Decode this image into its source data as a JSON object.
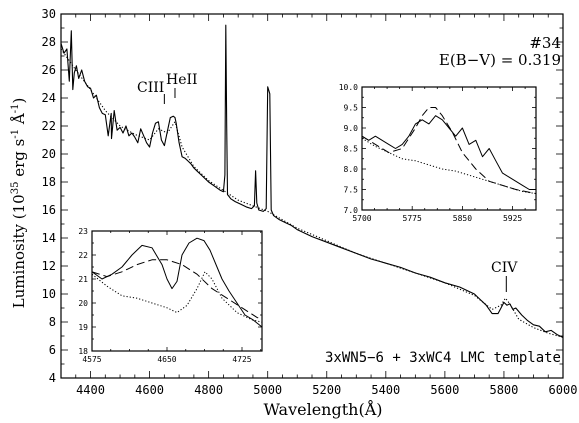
{
  "chart_data": [
    {
      "type": "line",
      "xlabel": "Wavelength(Å)",
      "ylabel_parts": {
        "pre": "Luminosity  (10",
        "exp": "35",
        "mid": " erg s",
        "exp2": "-1",
        "post": " Å",
        "exp3": "-1",
        "end": ")"
      },
      "xlim": [
        4300,
        6000
      ],
      "ylim": [
        4,
        30
      ],
      "x_ticks": [
        4400,
        4600,
        4800,
        5000,
        5200,
        5400,
        5600,
        5800,
        6000
      ],
      "y_ticks": [
        4,
        6,
        8,
        10,
        12,
        14,
        16,
        18,
        20,
        22,
        24,
        26,
        28,
        30
      ],
      "annotations": {
        "id": "#34",
        "ebv": "E(B−V) = 0.319",
        "template": "3xWN5−6 + 3xWC4 LMC template",
        "ciii": "CIII",
        "heii": "HeII",
        "civ": "CIV"
      },
      "series": [
        {
          "style": "solid",
          "x": [
            4300,
            4310,
            4320,
            4328,
            4335,
            4340,
            4345,
            4352,
            4360,
            4370,
            4380,
            4390,
            4400,
            4410,
            4420,
            4430,
            4440,
            4450,
            4460,
            4470,
            4471,
            4480,
            4490,
            4500,
            4510,
            4520,
            4530,
            4540,
            4550,
            4560,
            4570,
            4580,
            4590,
            4600,
            4610,
            4620,
            4630,
            4640,
            4650,
            4660,
            4670,
            4680,
            4686,
            4690,
            4700,
            4710,
            4720,
            4730,
            4740,
            4750,
            4760,
            4770,
            4780,
            4790,
            4800,
            4820,
            4840,
            4850,
            4855,
            4858,
            4861,
            4864,
            4868,
            4875,
            4890,
            4910,
            4930,
            4945,
            4955,
            4959,
            4963,
            4970,
            4985,
            4995,
            5000,
            5007,
            5012,
            5020,
            5040,
            5060,
            5080,
            5100,
            5150,
            5200,
            5250,
            5300,
            5350,
            5400,
            5450,
            5500,
            5550,
            5600,
            5650,
            5700,
            5720,
            5740,
            5760,
            5780,
            5790,
            5800,
            5810,
            5820,
            5830,
            5840,
            5860,
            5880,
            5900,
            5920,
            5940,
            5960,
            5980,
            6000
          ],
          "y": [
            27.9,
            27.2,
            27.5,
            25.2,
            28.8,
            24.6,
            25.8,
            26.3,
            25.4,
            26.0,
            25.2,
            24.8,
            24.7,
            24.0,
            24.2,
            23.3,
            22.9,
            22.8,
            21.3,
            22.9,
            21.1,
            23.1,
            21.7,
            21.9,
            21.5,
            22.0,
            21.3,
            21.5,
            21.2,
            20.8,
            21.8,
            21.3,
            20.8,
            20.5,
            21.5,
            22.2,
            22.3,
            21.0,
            20.6,
            21.6,
            22.6,
            22.7,
            22.6,
            22.2,
            20.8,
            19.8,
            19.7,
            19.5,
            19.3,
            19.0,
            18.8,
            18.6,
            18.4,
            18.2,
            18.0,
            17.7,
            17.4,
            17.3,
            18.5,
            29.2,
            22.0,
            17.1,
            17.0,
            16.8,
            16.6,
            16.4,
            16.2,
            16.1,
            16.3,
            18.8,
            16.5,
            16.0,
            15.9,
            16.1,
            24.8,
            24.3,
            16.0,
            15.6,
            15.3,
            15.1,
            14.9,
            14.6,
            14.1,
            13.7,
            13.3,
            12.9,
            12.5,
            12.2,
            11.9,
            11.5,
            11.2,
            10.8,
            10.5,
            10.0,
            9.6,
            9.2,
            8.6,
            8.6,
            9.0,
            9.4,
            9.2,
            9.3,
            8.9,
            9.0,
            8.5,
            8.1,
            7.8,
            7.7,
            7.3,
            7.4,
            7.1,
            6.9
          ]
        },
        {
          "style": "dotted",
          "x": [
            4300,
            4350,
            4400,
            4450,
            4500,
            4550,
            4600,
            4630,
            4660,
            4686,
            4710,
            4750,
            4800,
            4900,
            5000,
            5100,
            5200,
            5300,
            5400,
            5500,
            5600,
            5700,
            5760,
            5790,
            5805,
            5820,
            5850,
            5900,
            5950,
            6000
          ],
          "y": [
            27.5,
            26.0,
            24.6,
            23.1,
            22.0,
            21.4,
            21.0,
            21.8,
            21.5,
            22.3,
            20.5,
            19.1,
            18.1,
            16.7,
            15.9,
            14.7,
            13.8,
            12.9,
            12.2,
            11.5,
            10.8,
            9.9,
            8.9,
            9.2,
            9.7,
            9.3,
            8.2,
            7.6,
            7.2,
            6.9
          ]
        }
      ]
    },
    {
      "type": "line",
      "xlim": [
        5700,
        5960
      ],
      "ylim": [
        7,
        10
      ],
      "x_ticks": [
        5700,
        5775,
        5850,
        5925
      ],
      "y_ticks": [
        7.0,
        7.5,
        8.0,
        8.5,
        9.0,
        9.5,
        10.0
      ],
      "series": [
        {
          "style": "solid",
          "x": [
            5700,
            5710,
            5720,
            5730,
            5740,
            5750,
            5760,
            5770,
            5780,
            5790,
            5800,
            5810,
            5820,
            5830,
            5840,
            5850,
            5860,
            5870,
            5880,
            5890,
            5900,
            5910,
            5920,
            5930,
            5940,
            5950,
            5960
          ],
          "y": [
            8.8,
            8.7,
            8.8,
            8.7,
            8.6,
            8.5,
            8.6,
            8.8,
            9.1,
            9.2,
            9.1,
            9.3,
            9.2,
            9.0,
            8.8,
            9.0,
            8.6,
            8.7,
            8.3,
            8.5,
            8.2,
            7.9,
            7.8,
            7.7,
            7.6,
            7.5,
            7.5
          ]
        },
        {
          "style": "dashed",
          "x": [
            5700,
            5720,
            5740,
            5760,
            5780,
            5790,
            5800,
            5810,
            5820,
            5835,
            5850,
            5870,
            5890,
            5910,
            5930,
            5960
          ],
          "y": [
            8.8,
            8.6,
            8.4,
            8.5,
            9.0,
            9.3,
            9.5,
            9.5,
            9.3,
            8.9,
            8.4,
            8.0,
            7.7,
            7.6,
            7.5,
            7.4
          ]
        },
        {
          "style": "dotted",
          "x": [
            5700,
            5720,
            5740,
            5760,
            5780,
            5800,
            5820,
            5840,
            5860,
            5880,
            5900,
            5920,
            5940,
            5960
          ],
          "y": [
            8.75,
            8.55,
            8.4,
            8.25,
            8.2,
            8.1,
            8.0,
            7.95,
            7.85,
            7.75,
            7.65,
            7.55,
            7.45,
            7.4
          ]
        }
      ]
    },
    {
      "type": "line",
      "xlim": [
        4575,
        4745
      ],
      "ylim": [
        18,
        23
      ],
      "x_ticks": [
        4575,
        4650,
        4725
      ],
      "y_ticks": [
        18,
        19,
        20,
        21,
        22,
        23
      ],
      "series": [
        {
          "style": "solid",
          "x": [
            4575,
            4585,
            4595,
            4605,
            4615,
            4625,
            4635,
            4645,
            4650,
            4655,
            4660,
            4665,
            4672,
            4680,
            4687,
            4693,
            4700,
            4705,
            4712,
            4720,
            4728,
            4736,
            4745
          ],
          "y": [
            21.3,
            21.0,
            21.2,
            21.5,
            22.0,
            22.4,
            22.3,
            21.6,
            21.0,
            20.6,
            20.9,
            22.0,
            22.5,
            22.7,
            22.6,
            22.2,
            21.5,
            21.0,
            20.5,
            20.0,
            19.5,
            19.3,
            19.0
          ]
        },
        {
          "style": "dashed",
          "x": [
            4575,
            4590,
            4605,
            4620,
            4635,
            4650,
            4665,
            4680,
            4695,
            4710,
            4725,
            4740,
            4745
          ],
          "y": [
            21.3,
            21.1,
            21.3,
            21.6,
            21.8,
            21.8,
            21.6,
            21.2,
            20.6,
            20.2,
            19.8,
            19.4,
            19.3
          ]
        },
        {
          "style": "dotted",
          "x": [
            4575,
            4590,
            4605,
            4620,
            4635,
            4650,
            4660,
            4670,
            4680,
            4688,
            4695,
            4705,
            4720,
            4735,
            4745
          ],
          "y": [
            21.2,
            20.7,
            20.3,
            20.2,
            20.0,
            19.8,
            19.6,
            19.9,
            20.6,
            21.3,
            21.0,
            20.2,
            19.6,
            19.3,
            19.2
          ]
        }
      ]
    }
  ]
}
